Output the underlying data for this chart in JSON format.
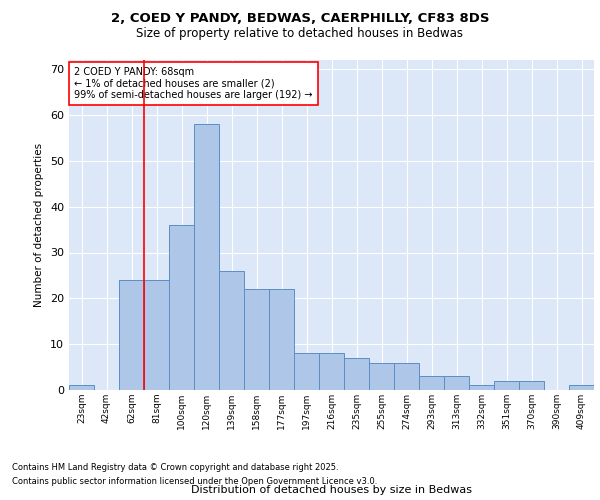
{
  "title_line1": "2, COED Y PANDY, BEDWAS, CAERPHILLY, CF83 8DS",
  "title_line2": "Size of property relative to detached houses in Bedwas",
  "xlabel": "Distribution of detached houses by size in Bedwas",
  "ylabel": "Number of detached properties",
  "categories": [
    "23sqm",
    "42sqm",
    "62sqm",
    "81sqm",
    "100sqm",
    "120sqm",
    "139sqm",
    "158sqm",
    "177sqm",
    "197sqm",
    "216sqm",
    "235sqm",
    "255sqm",
    "274sqm",
    "293sqm",
    "313sqm",
    "332sqm",
    "351sqm",
    "370sqm",
    "390sqm",
    "409sqm"
  ],
  "values": [
    1,
    0,
    24,
    24,
    36,
    58,
    26,
    22,
    22,
    8,
    8,
    7,
    6,
    6,
    3,
    3,
    1,
    2,
    2,
    0,
    1
  ],
  "bar_color": "#aec6e8",
  "bar_edge_color": "#5b8ec4",
  "background_color": "#dce8f8",
  "grid_color": "#ffffff",
  "red_line_x": 2.5,
  "annotation_text": "2 COED Y PANDY: 68sqm\n← 1% of detached houses are smaller (2)\n99% of semi-detached houses are larger (192) →",
  "footer_line1": "Contains HM Land Registry data © Crown copyright and database right 2025.",
  "footer_line2": "Contains public sector information licensed under the Open Government Licence v3.0.",
  "ylim": [
    0,
    72
  ],
  "yticks": [
    0,
    10,
    20,
    30,
    40,
    50,
    60,
    70
  ]
}
